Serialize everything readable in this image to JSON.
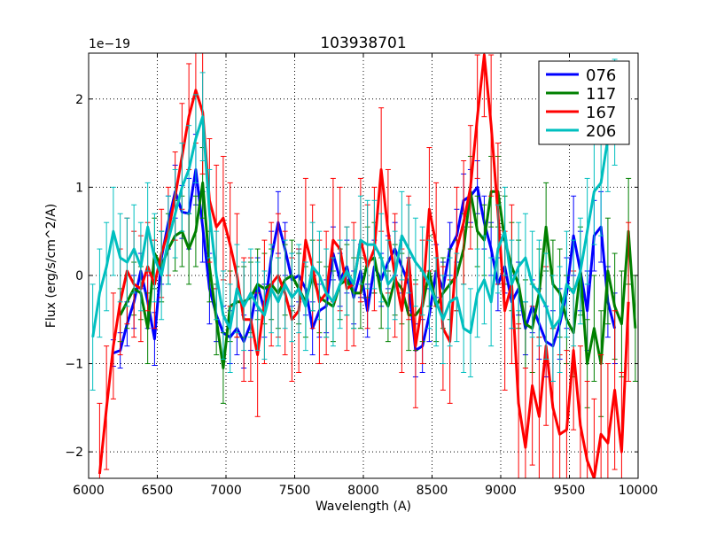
{
  "chart_data": {
    "type": "line",
    "title": "103938701",
    "xlabel": "Wavelength (A)",
    "ylabel": "Flux (erg/s/cm^2/A)",
    "y_multiplier_label": "1e−19",
    "xlim": [
      6000,
      10000
    ],
    "ylim": [
      -2.3,
      2.52
    ],
    "xticks": [
      6000,
      6500,
      7000,
      7500,
      8000,
      8500,
      9000,
      9500,
      10000
    ],
    "xtick_labels": [
      "6000",
      "6500",
      "7000",
      "7500",
      "8000",
      "8500",
      "9000",
      "9500",
      "10000"
    ],
    "yticks": [
      -2,
      -1,
      0,
      1,
      2
    ],
    "ytick_labels": [
      "−2",
      "−1",
      "0",
      "1",
      "2"
    ],
    "grid": true,
    "legend_position": "top-right",
    "colors": {
      "076": "#0000ff",
      "117": "#008000",
      "167": "#ff0000",
      "206": "#00bfbf"
    },
    "series": [
      {
        "name": "076",
        "x": [
          6180,
          6230,
          6280,
          6330,
          6380,
          6430,
          6480,
          6530,
          6580,
          6630,
          6680,
          6730,
          6780,
          6830,
          6880,
          6930,
          6980,
          7030,
          7080,
          7130,
          7180,
          7230,
          7280,
          7330,
          7380,
          7430,
          7480,
          7530,
          7580,
          7630,
          7680,
          7730,
          7780,
          7830,
          7880,
          7930,
          7980,
          8030,
          8080,
          8130,
          8180,
          8230,
          8280,
          8330,
          8380,
          8430,
          8480,
          8530,
          8580,
          8630,
          8680,
          8730,
          8780,
          8830,
          8880,
          8930,
          8980,
          9030,
          9080,
          9130,
          9180,
          9230,
          9280,
          9330,
          9380,
          9430,
          9480,
          9530,
          9580,
          9630,
          9680,
          9730,
          9780,
          9830
        ],
        "y": [
          -0.88,
          -0.85,
          -0.55,
          -0.3,
          0.05,
          -0.3,
          -0.72,
          0.2,
          0.6,
          0.95,
          0.72,
          0.7,
          1.2,
          0.55,
          -0.15,
          -0.45,
          -0.65,
          -0.7,
          -0.6,
          -0.75,
          -0.55,
          -0.1,
          -0.4,
          0.2,
          0.6,
          0.3,
          -0.05,
          0.0,
          -0.15,
          -0.6,
          -0.4,
          -0.35,
          0.25,
          -0.05,
          0.1,
          -0.25,
          0.05,
          -0.4,
          0.1,
          -0.05,
          0.15,
          0.3,
          0.1,
          -0.1,
          -0.85,
          -0.8,
          -0.45,
          0.05,
          -0.15,
          0.3,
          0.45,
          0.85,
          0.9,
          1.0,
          0.6,
          0.3,
          -0.1,
          0.1,
          -0.3,
          -0.15,
          -0.6,
          -0.35,
          -0.55,
          -0.75,
          -0.8,
          -0.55,
          -0.2,
          0.45,
          0.05,
          -0.4,
          0.45,
          0.55,
          -0.3,
          -0.6
        ],
        "err": [
          0.15,
          0.2,
          0.25,
          0.3,
          0.2,
          0.3,
          0.3,
          0.3,
          0.3,
          0.3,
          0.3,
          0.4,
          0.4,
          0.4,
          0.4,
          0.3,
          0.3,
          0.3,
          0.3,
          0.3,
          0.3,
          0.3,
          0.3,
          0.3,
          0.35,
          0.3,
          0.3,
          0.3,
          0.3,
          0.3,
          0.3,
          0.3,
          0.3,
          0.3,
          0.3,
          0.3,
          0.3,
          0.3,
          0.3,
          0.3,
          0.3,
          0.3,
          0.3,
          0.3,
          0.3,
          0.3,
          0.3,
          0.3,
          0.3,
          0.3,
          0.3,
          0.3,
          0.3,
          0.3,
          0.3,
          0.3,
          0.3,
          0.3,
          0.3,
          0.3,
          0.3,
          0.3,
          0.4,
          0.4,
          0.4,
          0.4,
          0.4,
          0.45,
          0.45,
          0.45,
          0.4,
          0.4,
          0.4,
          0.4
        ]
      },
      {
        "name": "117",
        "x": [
          6230,
          6280,
          6330,
          6380,
          6430,
          6480,
          6530,
          6580,
          6630,
          6680,
          6730,
          6780,
          6830,
          6880,
          6930,
          6980,
          7030,
          7080,
          7130,
          7180,
          7230,
          7280,
          7330,
          7380,
          7430,
          7480,
          7530,
          7580,
          7630,
          7680,
          7730,
          7780,
          7830,
          7880,
          7930,
          7980,
          8030,
          8080,
          8130,
          8180,
          8230,
          8280,
          8330,
          8380,
          8430,
          8480,
          8530,
          8580,
          8630,
          8680,
          8730,
          8780,
          8830,
          8880,
          8930,
          8980,
          9030,
          9080,
          9130,
          9180,
          9230,
          9280,
          9330,
          9380,
          9430,
          9480,
          9530,
          9580,
          9630,
          9680,
          9730,
          9780,
          9830,
          9880,
          9930,
          9980
        ],
        "y": [
          -0.45,
          -0.3,
          -0.15,
          -0.2,
          -0.6,
          0.25,
          0.1,
          0.3,
          0.45,
          0.5,
          0.3,
          0.5,
          1.05,
          0.1,
          -0.5,
          -1.05,
          -0.35,
          -0.3,
          -0.3,
          -0.25,
          -0.1,
          -0.15,
          -0.1,
          -0.2,
          -0.05,
          0.0,
          -0.15,
          -0.3,
          0.0,
          -0.25,
          -0.3,
          -0.35,
          -0.1,
          -0.05,
          -0.2,
          -0.2,
          0.15,
          0.2,
          -0.2,
          -0.35,
          -0.05,
          -0.15,
          -0.45,
          -0.45,
          -0.35,
          0.05,
          -0.35,
          -0.2,
          -0.1,
          0.0,
          0.3,
          0.95,
          0.5,
          0.4,
          0.95,
          0.95,
          0.4,
          0.1,
          -0.1,
          -0.55,
          -0.6,
          -0.2,
          0.55,
          -0.1,
          -0.2,
          -0.5,
          -0.65,
          0.05,
          -1.0,
          -0.6,
          -1.0,
          0.05,
          -0.35,
          -0.55,
          0.5,
          -0.6
        ],
        "err": [
          0.3,
          0.3,
          0.3,
          0.3,
          0.4,
          0.4,
          0.4,
          0.4,
          0.4,
          0.4,
          0.4,
          0.4,
          0.4,
          0.4,
          0.4,
          0.4,
          0.4,
          0.4,
          0.4,
          0.4,
          0.4,
          0.4,
          0.4,
          0.4,
          0.4,
          0.4,
          0.4,
          0.4,
          0.4,
          0.4,
          0.4,
          0.4,
          0.4,
          0.4,
          0.4,
          0.4,
          0.4,
          0.4,
          0.4,
          0.4,
          0.4,
          0.4,
          0.4,
          0.4,
          0.4,
          0.4,
          0.4,
          0.4,
          0.4,
          0.4,
          0.4,
          0.4,
          0.4,
          0.4,
          0.4,
          0.4,
          0.5,
          0.5,
          0.5,
          0.5,
          0.5,
          0.5,
          0.5,
          0.5,
          0.5,
          0.5,
          0.5,
          0.5,
          0.5,
          0.6,
          0.6,
          0.6,
          0.6,
          0.6,
          0.6,
          0.6
        ]
      },
      {
        "name": "167",
        "x": [
          6080,
          6130,
          6180,
          6230,
          6280,
          6330,
          6380,
          6430,
          6480,
          6530,
          6580,
          6630,
          6680,
          6730,
          6780,
          6830,
          6880,
          6930,
          6980,
          7030,
          7080,
          7130,
          7180,
          7230,
          7280,
          7330,
          7380,
          7430,
          7480,
          7530,
          7580,
          7630,
          7680,
          7730,
          7780,
          7830,
          7880,
          7930,
          7980,
          8030,
          8080,
          8130,
          8180,
          8230,
          8280,
          8330,
          8380,
          8430,
          8480,
          8530,
          8580,
          8630,
          8680,
          8730,
          8780,
          8830,
          8880,
          8930,
          8980,
          9030,
          9080,
          9130,
          9180,
          9230,
          9280,
          9330,
          9380,
          9430,
          9480,
          9530,
          9580,
          9630,
          9680,
          9730,
          9780,
          9830,
          9880,
          9930
        ],
        "y": [
          -2.25,
          -1.5,
          -0.8,
          -0.3,
          0.05,
          -0.1,
          -0.15,
          0.1,
          -0.1,
          0.25,
          0.5,
          0.9,
          1.35,
          1.8,
          2.1,
          1.85,
          0.85,
          0.55,
          0.65,
          0.35,
          0.0,
          -0.5,
          -0.5,
          -0.9,
          -0.3,
          -0.1,
          0.0,
          -0.2,
          -0.5,
          -0.4,
          0.4,
          0.1,
          -0.3,
          -0.2,
          0.4,
          0.3,
          -0.15,
          -0.1,
          0.4,
          0.1,
          0.3,
          1.2,
          0.5,
          0.0,
          -0.4,
          0.2,
          -0.8,
          -0.3,
          0.75,
          0.35,
          -0.6,
          -0.75,
          0.3,
          0.6,
          1.0,
          1.8,
          2.5,
          1.7,
          0.7,
          -0.4,
          -0.1,
          -1.45,
          -1.95,
          -1.25,
          -1.6,
          -0.8,
          -1.5,
          -1.8,
          -1.75,
          -0.85,
          -1.7,
          -2.1,
          -2.3,
          -1.8,
          -1.9,
          -1.3,
          -2.0,
          -0.3
        ],
        "err": [
          0.8,
          0.7,
          0.6,
          0.6,
          0.6,
          0.6,
          0.6,
          0.5,
          0.5,
          0.5,
          0.5,
          0.5,
          0.6,
          0.6,
          0.6,
          0.7,
          0.7,
          0.7,
          0.7,
          0.7,
          0.7,
          0.7,
          0.7,
          0.7,
          0.7,
          0.7,
          0.7,
          0.7,
          0.7,
          0.7,
          0.7,
          0.7,
          0.7,
          0.7,
          0.7,
          0.7,
          0.7,
          0.7,
          0.7,
          0.7,
          0.7,
          0.7,
          0.7,
          0.7,
          0.7,
          0.7,
          0.7,
          0.7,
          0.7,
          0.7,
          0.7,
          0.7,
          0.7,
          0.7,
          0.7,
          0.7,
          0.7,
          0.8,
          0.8,
          0.9,
          0.9,
          0.9,
          0.9,
          0.9,
          0.9,
          0.9,
          0.9,
          0.9,
          0.9,
          0.9,
          0.9,
          0.9,
          0.9,
          0.9,
          0.9,
          0.9,
          0.9,
          0.9
        ]
      },
      {
        "name": "206",
        "x": [
          6030,
          6080,
          6130,
          6180,
          6230,
          6280,
          6330,
          6380,
          6430,
          6480,
          6530,
          6580,
          6630,
          6680,
          6730,
          6780,
          6830,
          6880,
          6930,
          6980,
          7030,
          7080,
          7130,
          7180,
          7230,
          7280,
          7330,
          7380,
          7430,
          7480,
          7530,
          7580,
          7630,
          7680,
          7730,
          7780,
          7830,
          7880,
          7930,
          7980,
          8030,
          8080,
          8130,
          8180,
          8230,
          8280,
          8330,
          8380,
          8430,
          8480,
          8530,
          8580,
          8630,
          8680,
          8730,
          8780,
          8830,
          8880,
          8930,
          8980,
          9030,
          9080,
          9130,
          9180,
          9230,
          9280,
          9330,
          9380,
          9430,
          9480,
          9530,
          9580,
          9630,
          9680,
          9730,
          9780,
          9830
        ],
        "y": [
          -0.7,
          -0.2,
          0.1,
          0.5,
          0.2,
          0.15,
          0.3,
          0.1,
          0.55,
          0.2,
          0.0,
          0.4,
          0.7,
          1.0,
          1.2,
          1.55,
          1.8,
          0.7,
          0.0,
          -0.45,
          -0.6,
          -0.15,
          -0.35,
          -0.2,
          -0.35,
          -0.45,
          -0.15,
          -0.3,
          -0.1,
          -0.25,
          -0.15,
          -0.35,
          0.1,
          0.0,
          -0.2,
          -0.3,
          -0.1,
          0.05,
          -0.1,
          0.4,
          0.35,
          0.35,
          0.2,
          -0.1,
          0.0,
          0.45,
          0.3,
          0.15,
          0.05,
          -0.1,
          -0.3,
          -0.5,
          -0.3,
          -0.25,
          -0.6,
          -0.65,
          -0.2,
          -0.05,
          -0.3,
          0.3,
          0.5,
          -0.1,
          0.1,
          0.2,
          -0.1,
          -0.2,
          -0.35,
          -0.6,
          -0.5,
          -0.1,
          -0.2,
          0.05,
          0.5,
          0.95,
          1.05,
          1.55,
          1.85
        ],
        "err": [
          0.6,
          0.5,
          0.5,
          0.5,
          0.5,
          0.5,
          0.5,
          0.5,
          0.5,
          0.5,
          0.5,
          0.5,
          0.5,
          0.5,
          0.5,
          0.5,
          0.5,
          0.5,
          0.5,
          0.5,
          0.5,
          0.5,
          0.5,
          0.5,
          0.5,
          0.5,
          0.5,
          0.5,
          0.5,
          0.5,
          0.5,
          0.5,
          0.5,
          0.5,
          0.5,
          0.5,
          0.5,
          0.5,
          0.5,
          0.5,
          0.5,
          0.5,
          0.5,
          0.5,
          0.5,
          0.5,
          0.5,
          0.5,
          0.5,
          0.5,
          0.5,
          0.5,
          0.5,
          0.5,
          0.5,
          0.5,
          0.5,
          0.5,
          0.5,
          0.5,
          0.5,
          0.5,
          0.5,
          0.5,
          0.6,
          0.6,
          0.6,
          0.6,
          0.6,
          0.6,
          0.6,
          0.6,
          0.6,
          0.6,
          0.6,
          0.6,
          0.6
        ]
      }
    ]
  }
}
